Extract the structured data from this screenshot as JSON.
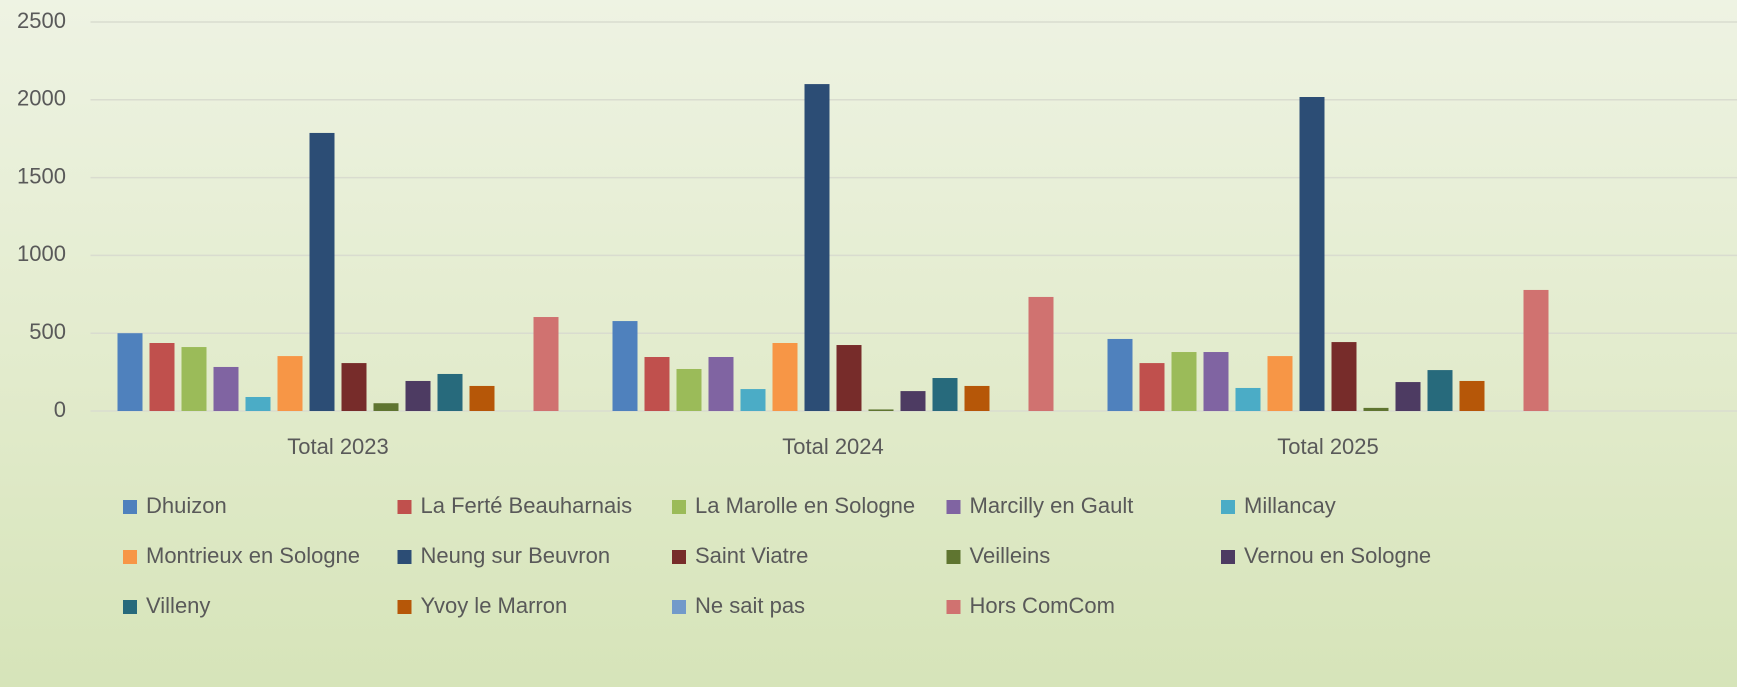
{
  "chart_data": {
    "type": "bar",
    "categories": [
      "Total 2023",
      "Total 2024",
      "Total 2025"
    ],
    "series": [
      {
        "name": "Dhuizon",
        "color": "#4f81bd",
        "values": [
          500,
          578,
          463
        ]
      },
      {
        "name": "La Ferté Beauharnais",
        "color": "#c0504d",
        "values": [
          437,
          347,
          308
        ]
      },
      {
        "name": "La Marolle en Sologne",
        "color": "#9bbb59",
        "values": [
          411,
          270,
          379
        ]
      },
      {
        "name": "Marcilly en Gault",
        "color": "#8064a2",
        "values": [
          283,
          347,
          379
        ]
      },
      {
        "name": "Millancay",
        "color": "#4bacc6",
        "values": [
          90,
          141,
          148
        ]
      },
      {
        "name": "Montrieux en Sologne",
        "color": "#f79646",
        "values": [
          353,
          437,
          353
        ]
      },
      {
        "name": "Neung sur Beuvron",
        "color": "#2c4d75",
        "values": [
          1787,
          2101,
          2018
        ]
      },
      {
        "name": "Saint Viatre",
        "color": "#772c2a",
        "values": [
          308,
          424,
          443
        ]
      },
      {
        "name": "Veilleins",
        "color": "#5f7530",
        "values": [
          50,
          10,
          20
        ]
      },
      {
        "name": "Vernou en Sologne",
        "color": "#4d3b62",
        "values": [
          193,
          128,
          186
        ]
      },
      {
        "name": "Villeny",
        "color": "#276a7c",
        "values": [
          238,
          212,
          263
        ]
      },
      {
        "name": "Yvoy le Marron",
        "color": "#b65708",
        "values": [
          161,
          161,
          193
        ]
      },
      {
        "name": "Ne sait pas",
        "color": "#729aca",
        "values": [
          0,
          0,
          0
        ]
      },
      {
        "name": "Hors ComCom",
        "color": "#d07270",
        "values": [
          604,
          733,
          778
        ]
      }
    ],
    "ylim": [
      0,
      2500
    ],
    "yticks": [
      0,
      500,
      1000,
      1500,
      2000,
      2500
    ],
    "grid": true
  }
}
